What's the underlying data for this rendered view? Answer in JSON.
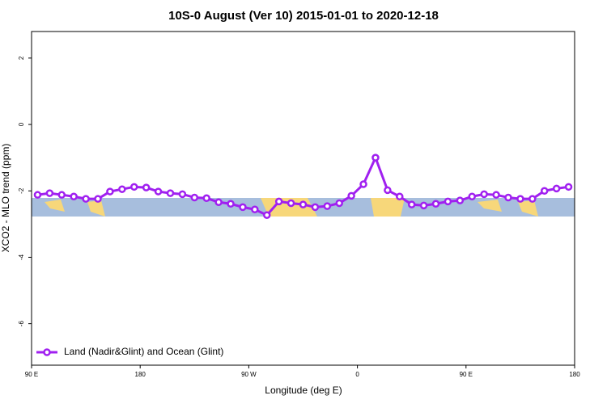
{
  "chart_data": {
    "type": "line",
    "title": "10S-0 August (Ver 10)   2015-01-01 to 2020-12-18",
    "x_label": "Longitude (deg E)",
    "y_label": "XCO2 - MLO trend (ppm)",
    "xlim": [
      90,
      540
    ],
    "ylim": [
      -7.25,
      2.8
    ],
    "xticks": [
      {
        "value": 90,
        "label": "90 E"
      },
      180,
      {
        "value": 270,
        "label": "90 W"
      },
      {
        "value": 360,
        "label": "0"
      },
      {
        "value": 450,
        "label": "90 E"
      },
      {
        "value": 540,
        "label": "180"
      }
    ],
    "yticks": [
      2,
      0,
      -2,
      -4,
      -6
    ],
    "legend": "bottom-left",
    "x": [
      95,
      105,
      115,
      125,
      135,
      145,
      155,
      165,
      175,
      185,
      195,
      205,
      215,
      225,
      235,
      245,
      255,
      265,
      275,
      285,
      295,
      305,
      315,
      325,
      335,
      345,
      355,
      365,
      375,
      385,
      395,
      405,
      415,
      425,
      435,
      445,
      455,
      465,
      475,
      485,
      495,
      505,
      515,
      525,
      535
    ],
    "series": [
      {
        "name": "Land (Nadir&Glint) and Ocean (Glint)",
        "color": "#a020f0",
        "values": [
          -2.12,
          -2.07,
          -2.12,
          -2.17,
          -2.24,
          -2.24,
          -2.02,
          -1.95,
          -1.88,
          -1.9,
          -2.02,
          -2.07,
          -2.1,
          -2.2,
          -2.22,
          -2.34,
          -2.39,
          -2.49,
          -2.56,
          -2.73,
          -2.32,
          -2.37,
          -2.41,
          -2.49,
          -2.46,
          -2.37,
          -2.15,
          -1.8,
          -1.0,
          -1.98,
          -2.17,
          -2.41,
          -2.44,
          -2.39,
          -2.32,
          -2.29,
          -2.17,
          -2.1,
          -2.12,
          -2.2,
          -2.24,
          -2.24,
          -2.0,
          -1.93,
          -1.88
        ]
      }
    ]
  }
}
